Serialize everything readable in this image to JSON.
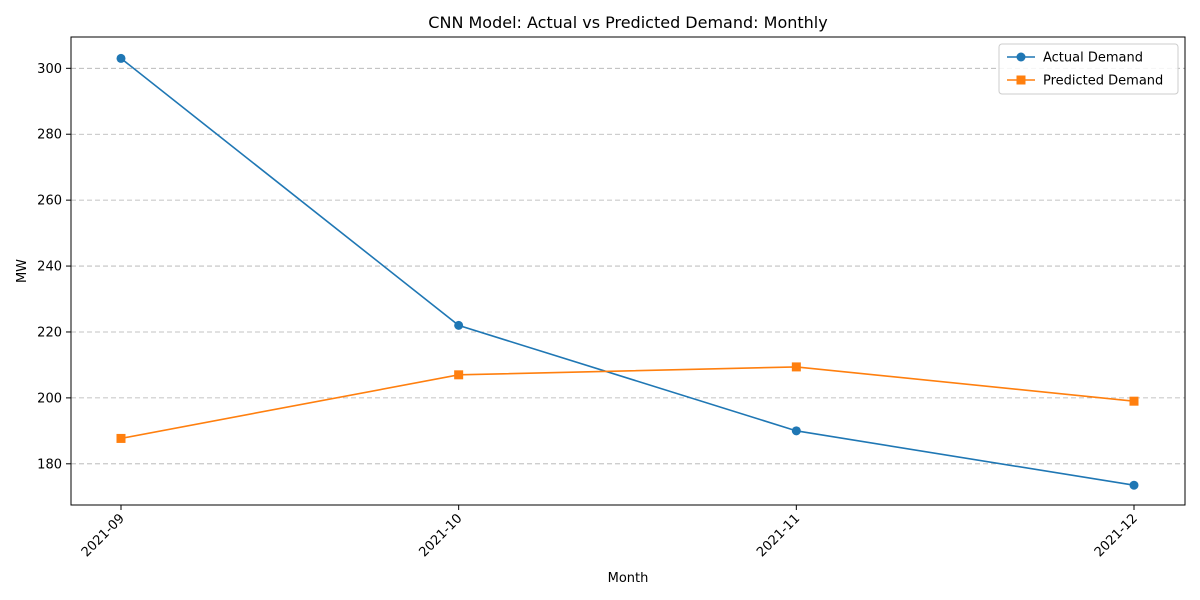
{
  "chart_data": {
    "type": "line",
    "title": "CNN Model: Actual vs Predicted Demand: Monthly",
    "xlabel": "Month",
    "ylabel": "MW",
    "categories": [
      "2021-09",
      "2021-10",
      "2021-11",
      "2021-12"
    ],
    "ylim": [
      167.5,
      309.5
    ],
    "yticks": [
      180,
      200,
      220,
      240,
      260,
      280,
      300
    ],
    "grid": "horizontal-dashed",
    "legend_position": "top-right",
    "series": [
      {
        "name": "Actual Demand",
        "values": [
          303,
          222,
          190,
          173.5
        ],
        "color": "#1f77b4",
        "marker": "circle"
      },
      {
        "name": "Predicted Demand",
        "values": [
          187.7,
          207,
          209.4,
          199
        ],
        "color": "#ff7f0e",
        "marker": "square"
      }
    ]
  }
}
